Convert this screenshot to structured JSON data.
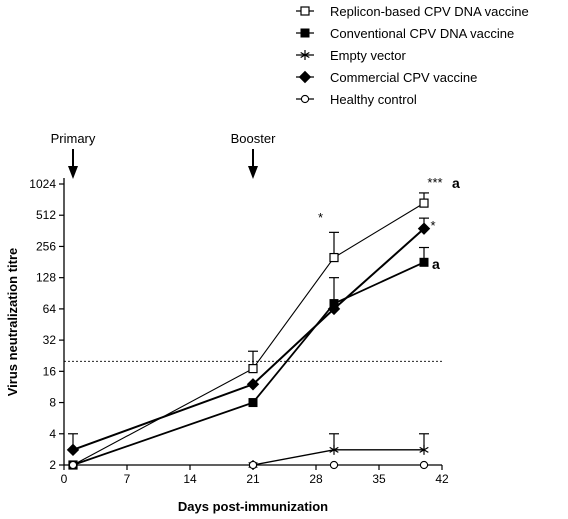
{
  "chart_data": {
    "type": "line",
    "title": "",
    "xlabel": "Days post-immunization",
    "ylabel": "Virus neutralization titre",
    "xlim": [
      0,
      42
    ],
    "ylim": [
      2,
      1024
    ],
    "y_scale": "log2",
    "x_ticks": [
      "0",
      "7",
      "14",
      "21",
      "28",
      "35",
      "42"
    ],
    "y_ticks": [
      "2",
      "4",
      "8",
      "16",
      "32",
      "64",
      "128",
      "256",
      "512",
      "1024"
    ],
    "threshold": 20,
    "legend_position": "top-right",
    "series": [
      {
        "name": "Replicon-based CPV DNA vaccine",
        "marker": "square-open",
        "x": [
          1,
          21,
          30,
          40
        ],
        "y": [
          2,
          17,
          200,
          670
        ],
        "err_up": [
          null,
          25,
          350,
          840
        ]
      },
      {
        "name": "Conventional CPV DNA vaccine",
        "marker": "square-filled",
        "x": [
          1,
          21,
          30,
          40
        ],
        "y": [
          2,
          8,
          72,
          180
        ],
        "err_up": [
          null,
          null,
          128,
          250
        ]
      },
      {
        "name": "Empty vector",
        "marker": "asterisk",
        "x": [
          21,
          30,
          40
        ],
        "y": [
          2,
          2.8,
          2.8
        ],
        "err_up": [
          null,
          4,
          4
        ]
      },
      {
        "name": "Commercial CPV vaccine",
        "marker": "diamond-filled",
        "x": [
          1,
          21,
          30,
          40
        ],
        "y": [
          2.8,
          12,
          64,
          380
        ],
        "err_up": [
          4,
          null,
          null,
          480
        ]
      },
      {
        "name": "Healthy control",
        "marker": "circle-open",
        "x": [
          1,
          21,
          30,
          40
        ],
        "y": [
          2,
          2,
          2,
          2
        ],
        "err_up": [
          null,
          null,
          null,
          null
        ]
      }
    ],
    "annotations": {
      "primary_label": "Primary",
      "primary_day": 1,
      "booster_label": "Booster",
      "booster_day": 21,
      "star_day30": "*",
      "star_replicon_day40": "***",
      "letter_replicon_day40": "a",
      "star_commercial_day40": "*",
      "letter_conventional_day40": "a"
    }
  }
}
